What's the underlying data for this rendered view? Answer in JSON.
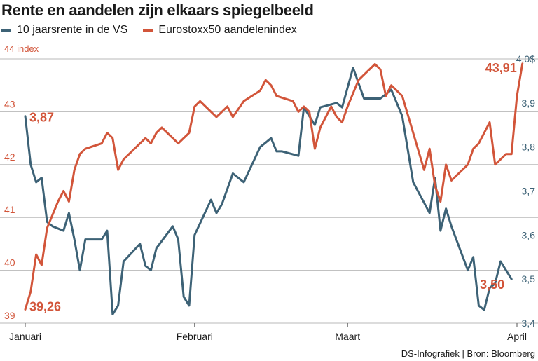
{
  "title": "Rente en aandelen zijn elkaars spiegelbeeld",
  "source": "DS-Infografiek | Bron: Bloomberg",
  "colors": {
    "rate": "#3d6276",
    "stocks": "#d2553a",
    "grid": "#b8b8b8",
    "axis": "#555555"
  },
  "chart_data": {
    "type": "line",
    "title": "Rente en aandelen zijn elkaars spiegelbeeld",
    "xlabel": "",
    "x_ticks": [
      {
        "label": "Januari",
        "x": 0
      },
      {
        "label": "Februari",
        "x": 31
      },
      {
        "label": "Maart",
        "x": 59
      },
      {
        "label": "April",
        "x": 90
      }
    ],
    "xlim": [
      0,
      90
    ],
    "left_axis": {
      "unit_label": "44 index",
      "ylim": [
        39,
        44
      ],
      "ticks": [
        {
          "value": 44,
          "label": ""
        },
        {
          "value": 43,
          "label": "43"
        },
        {
          "value": 42,
          "label": "42"
        },
        {
          "value": 41,
          "label": "41"
        },
        {
          "value": 40,
          "label": "40"
        },
        {
          "value": 39,
          "label": "39"
        }
      ]
    },
    "right_axis": {
      "ylim": [
        3.4,
        4.0
      ],
      "ticks": [
        {
          "value": 4.0,
          "label": "4,0$"
        },
        {
          "value": 3.9,
          "label": "3,9"
        },
        {
          "value": 3.8,
          "label": "3,8"
        },
        {
          "value": 3.7,
          "label": "3,7"
        },
        {
          "value": 3.6,
          "label": "3,6"
        },
        {
          "value": 3.5,
          "label": "3,5"
        },
        {
          "value": 3.4,
          "label": "3,4"
        }
      ]
    },
    "series": [
      {
        "name": "10 jaarsrente in de VS",
        "axis": "right",
        "start_label": "3,87",
        "end_label": "3,50",
        "points": [
          [
            0,
            3.87
          ],
          [
            1,
            3.76
          ],
          [
            2,
            3.72
          ],
          [
            3,
            3.73
          ],
          [
            4,
            3.63
          ],
          [
            5,
            3.62
          ],
          [
            7,
            3.61
          ],
          [
            8,
            3.65
          ],
          [
            9,
            3.59
          ],
          [
            10,
            3.52
          ],
          [
            11,
            3.59
          ],
          [
            14,
            3.59
          ],
          [
            15,
            3.61
          ],
          [
            16,
            3.42
          ],
          [
            17,
            3.44
          ],
          [
            18,
            3.54
          ],
          [
            21,
            3.58
          ],
          [
            22,
            3.53
          ],
          [
            23,
            3.52
          ],
          [
            24,
            3.57
          ],
          [
            27,
            3.62
          ],
          [
            28,
            3.59
          ],
          [
            29,
            3.46
          ],
          [
            30,
            3.44
          ],
          [
            31,
            3.6
          ],
          [
            34,
            3.68
          ],
          [
            35,
            3.65
          ],
          [
            36,
            3.67
          ],
          [
            38,
            3.74
          ],
          [
            40,
            3.72
          ],
          [
            43,
            3.8
          ],
          [
            45,
            3.82
          ],
          [
            46,
            3.79
          ],
          [
            47,
            3.79
          ],
          [
            50,
            3.78
          ],
          [
            51,
            3.89
          ],
          [
            53,
            3.85
          ],
          [
            54,
            3.89
          ],
          [
            57,
            3.9
          ],
          [
            58,
            3.89
          ],
          [
            60,
            3.98
          ],
          [
            62,
            3.91
          ],
          [
            65,
            3.91
          ],
          [
            66,
            3.92
          ],
          [
            67,
            3.93
          ],
          [
            69,
            3.87
          ],
          [
            71,
            3.72
          ],
          [
            74,
            3.65
          ],
          [
            75,
            3.73
          ],
          [
            76,
            3.61
          ],
          [
            77,
            3.66
          ],
          [
            78,
            3.62
          ],
          [
            81,
            3.52
          ],
          [
            82,
            3.55
          ],
          [
            83,
            3.44
          ],
          [
            84,
            3.43
          ],
          [
            85,
            3.48
          ],
          [
            86,
            3.49
          ],
          [
            87,
            3.54
          ],
          [
            88,
            3.52
          ],
          [
            89,
            3.5
          ]
        ]
      },
      {
        "name": "Eurostoxx50 aandelenindex",
        "axis": "left",
        "start_label": "39,26",
        "end_label": "43,91",
        "points": [
          [
            0,
            39.26
          ],
          [
            1,
            39.6
          ],
          [
            2,
            40.3
          ],
          [
            3,
            40.1
          ],
          [
            4,
            40.8
          ],
          [
            6,
            41.3
          ],
          [
            7,
            41.5
          ],
          [
            8,
            41.3
          ],
          [
            9,
            41.9
          ],
          [
            10,
            42.2
          ],
          [
            11,
            42.3
          ],
          [
            14,
            42.4
          ],
          [
            15,
            42.6
          ],
          [
            16,
            42.5
          ],
          [
            17,
            41.9
          ],
          [
            18,
            42.1
          ],
          [
            21,
            42.4
          ],
          [
            22,
            42.5
          ],
          [
            23,
            42.4
          ],
          [
            24,
            42.6
          ],
          [
            25,
            42.7
          ],
          [
            28,
            42.4
          ],
          [
            29,
            42.5
          ],
          [
            30,
            42.6
          ],
          [
            31,
            43.1
          ],
          [
            32,
            43.2
          ],
          [
            35,
            42.9
          ],
          [
            37,
            43.1
          ],
          [
            38,
            42.9
          ],
          [
            40,
            43.2
          ],
          [
            43,
            43.4
          ],
          [
            44,
            43.6
          ],
          [
            45,
            43.5
          ],
          [
            46,
            43.3
          ],
          [
            49,
            43.2
          ],
          [
            50,
            43.0
          ],
          [
            51,
            43.1
          ],
          [
            52,
            43.0
          ],
          [
            53,
            42.3
          ],
          [
            54,
            42.7
          ],
          [
            56,
            43.1
          ],
          [
            57,
            42.9
          ],
          [
            58,
            42.8
          ],
          [
            59,
            43.1
          ],
          [
            61,
            43.6
          ],
          [
            62,
            43.7
          ],
          [
            64,
            43.9
          ],
          [
            65,
            43.8
          ],
          [
            66,
            43.3
          ],
          [
            67,
            43.5
          ],
          [
            69,
            43.3
          ],
          [
            73,
            41.9
          ],
          [
            74,
            42.3
          ],
          [
            75,
            41.6
          ],
          [
            76,
            41.3
          ],
          [
            77,
            42.0
          ],
          [
            78,
            41.7
          ],
          [
            81,
            42.0
          ],
          [
            82,
            42.3
          ],
          [
            83,
            42.4
          ],
          [
            84,
            42.6
          ],
          [
            85,
            42.8
          ],
          [
            86,
            42.0
          ],
          [
            88,
            42.2
          ],
          [
            89,
            42.2
          ],
          [
            90,
            43.3
          ],
          [
            91,
            43.91
          ]
        ]
      }
    ]
  }
}
